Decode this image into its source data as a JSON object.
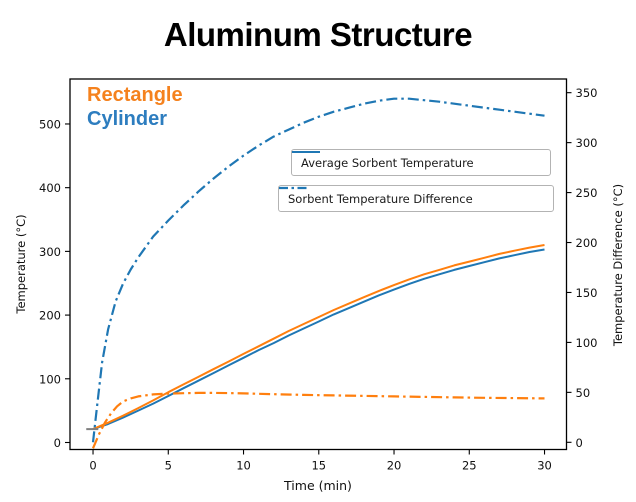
{
  "figure": {
    "title": "Aluminum Structure",
    "series_labels": {
      "rectangle": "Rectangle",
      "cylinder": "Cylinder"
    },
    "colors": {
      "cylinder_line": "#1f77b4",
      "rectangle_line": "#ff7f0e",
      "cylinder_label_text": "#2d7dbf",
      "rectangle_label_text": "#f5821e",
      "start_marker": "#7f7f7f",
      "legend_border": "#b3b3b3"
    },
    "legend": [
      {
        "label": "Average Sorbent Temperature",
        "style": "solid"
      },
      {
        "label": "Sorbent Temperature Difference",
        "style": "dashdot"
      }
    ]
  },
  "chart_data": {
    "type": "line",
    "title": "Aluminum Structure",
    "xlabel": "Time (min)",
    "ylabel_left": "Temperature (°C)",
    "ylabel_right": "Temperature Difference (°C)",
    "xlim": [
      -1.53,
      31.46
    ],
    "ylim_left": [
      -11,
      570.6
    ],
    "ylim_right": [
      -7.2,
      363.7
    ],
    "x_ticks": [
      0,
      5,
      10,
      15,
      20,
      25,
      30
    ],
    "y_ticks_left": [
      0,
      100,
      200,
      300,
      400,
      500
    ],
    "y_ticks_right": [
      0,
      50,
      100,
      150,
      200,
      250,
      300,
      350
    ],
    "grid": false,
    "series": [
      {
        "name": "Cylinder - Average Sorbent Temperature",
        "axis": "left",
        "style": "solid",
        "color": "#1f77b4",
        "points": [
          [
            0,
            21
          ],
          [
            1,
            29
          ],
          [
            2,
            39
          ],
          [
            3,
            50
          ],
          [
            4,
            61
          ],
          [
            5,
            73
          ],
          [
            6,
            85
          ],
          [
            7,
            97
          ],
          [
            8,
            109
          ],
          [
            9,
            121
          ],
          [
            10,
            133
          ],
          [
            11,
            145
          ],
          [
            12,
            156
          ],
          [
            13,
            168
          ],
          [
            14,
            179
          ],
          [
            15,
            190
          ],
          [
            16,
            201
          ],
          [
            17,
            211
          ],
          [
            18,
            221
          ],
          [
            19,
            231
          ],
          [
            20,
            240
          ],
          [
            21,
            249
          ],
          [
            22,
            257
          ],
          [
            23,
            264
          ],
          [
            24,
            271
          ],
          [
            25,
            277
          ],
          [
            26,
            283
          ],
          [
            27,
            289
          ],
          [
            28,
            294
          ],
          [
            29,
            299
          ],
          [
            30,
            303
          ]
        ]
      },
      {
        "name": "Rectangle - Average Sorbent Temperature",
        "axis": "left",
        "style": "solid",
        "color": "#ff7f0e",
        "points": [
          [
            0,
            21
          ],
          [
            1,
            31
          ],
          [
            2,
            42
          ],
          [
            3,
            54
          ],
          [
            4,
            66
          ],
          [
            5,
            79
          ],
          [
            6,
            91
          ],
          [
            7,
            103
          ],
          [
            8,
            115
          ],
          [
            9,
            127
          ],
          [
            10,
            139
          ],
          [
            11,
            151
          ],
          [
            12,
            163
          ],
          [
            13,
            175
          ],
          [
            14,
            186
          ],
          [
            15,
            197
          ],
          [
            16,
            208
          ],
          [
            17,
            218
          ],
          [
            18,
            228
          ],
          [
            19,
            238
          ],
          [
            20,
            247
          ],
          [
            21,
            256
          ],
          [
            22,
            264
          ],
          [
            23,
            271
          ],
          [
            24,
            278
          ],
          [
            25,
            284
          ],
          [
            26,
            290
          ],
          [
            27,
            296
          ],
          [
            28,
            301
          ],
          [
            29,
            306
          ],
          [
            30,
            310
          ]
        ]
      },
      {
        "name": "Cylinder - Sorbent Temperature Difference",
        "axis": "right",
        "style": "dashdot",
        "color": "#1f77b4",
        "points": [
          [
            0,
            0
          ],
          [
            0.3,
            40
          ],
          [
            0.6,
            80
          ],
          [
            1,
            113
          ],
          [
            1.5,
            141
          ],
          [
            2,
            159
          ],
          [
            2.5,
            173
          ],
          [
            3,
            185
          ],
          [
            4,
            206
          ],
          [
            5,
            222
          ],
          [
            6,
            237
          ],
          [
            7,
            251
          ],
          [
            8,
            264
          ],
          [
            9,
            276
          ],
          [
            10,
            287
          ],
          [
            11,
            297
          ],
          [
            12,
            306
          ],
          [
            13,
            313
          ],
          [
            14,
            320
          ],
          [
            15,
            326
          ],
          [
            16,
            331
          ],
          [
            17,
            335
          ],
          [
            18,
            339
          ],
          [
            19,
            342
          ],
          [
            20,
            344
          ],
          [
            21,
            344
          ],
          [
            22,
            342.5
          ],
          [
            23,
            341
          ],
          [
            24,
            339
          ],
          [
            25,
            337
          ],
          [
            26,
            335
          ],
          [
            27,
            333
          ],
          [
            28,
            331
          ],
          [
            29,
            329
          ],
          [
            30,
            327
          ]
        ]
      },
      {
        "name": "Rectangle - Sorbent Temperature Difference",
        "axis": "right",
        "style": "dashdot",
        "color": "#ff7f0e",
        "points": [
          [
            0,
            -6
          ],
          [
            0.4,
            8
          ],
          [
            0.8,
            20
          ],
          [
            1.2,
            29
          ],
          [
            1.6,
            36
          ],
          [
            2,
            41
          ],
          [
            2.5,
            44
          ],
          [
            3,
            46
          ],
          [
            4,
            48
          ],
          [
            5,
            48.8
          ],
          [
            6,
            49.2
          ],
          [
            7,
            49.5
          ],
          [
            8,
            49.5
          ],
          [
            9,
            49.3
          ],
          [
            10,
            49
          ],
          [
            12,
            48.2
          ],
          [
            14,
            47.5
          ],
          [
            16,
            47
          ],
          [
            18,
            46.5
          ],
          [
            20,
            46
          ],
          [
            22,
            45.5
          ],
          [
            24,
            45
          ],
          [
            26,
            44.6
          ],
          [
            28,
            44.3
          ],
          [
            30,
            44
          ]
        ]
      }
    ],
    "start_marker": {
      "t": 0,
      "value": 21,
      "axis": "left",
      "color": "#7f7f7f"
    },
    "legend_position": "upper center, two stacked boxes inside axes"
  }
}
